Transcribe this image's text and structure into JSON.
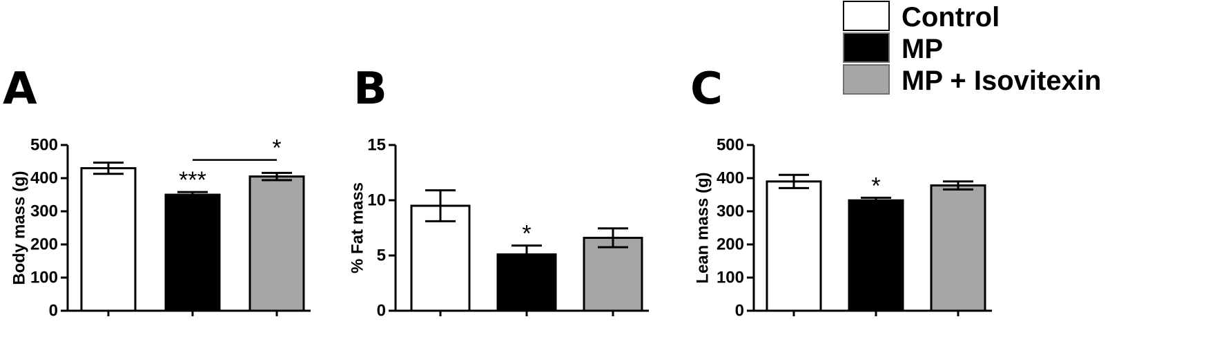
{
  "legend": [
    {
      "label": "Control",
      "color": "#ffffff"
    },
    {
      "label": "MP",
      "color": "#000000"
    },
    {
      "label": "MP + Isovitexin",
      "color": "#a6a6a6"
    }
  ],
  "chart_data": [
    {
      "type": "bar",
      "panel": "A",
      "ylabel": "Body mass (g)",
      "ylim": [
        0,
        500
      ],
      "yticks": [
        0,
        100,
        200,
        300,
        400,
        500
      ],
      "categories": [
        "Control",
        "MP",
        "MP + Isovitexin"
      ],
      "values": [
        430,
        350,
        405
      ],
      "errors": [
        17,
        8,
        11
      ],
      "significance": [
        "",
        "***",
        ""
      ],
      "brackets": [
        {
          "from": 1,
          "to": 2,
          "label": "*",
          "y": 455
        }
      ]
    },
    {
      "type": "bar",
      "panel": "B",
      "ylabel": "% Fat mass",
      "ylim": [
        0,
        15
      ],
      "yticks": [
        0,
        5,
        10,
        15
      ],
      "categories": [
        "Control",
        "MP",
        "MP + Isovitexin"
      ],
      "values": [
        9.5,
        5.1,
        6.6
      ],
      "errors": [
        1.4,
        0.8,
        0.85
      ],
      "significance": [
        "",
        "*",
        ""
      ],
      "brackets": []
    },
    {
      "type": "bar",
      "panel": "C",
      "ylabel": "Lean mass (g)",
      "ylim": [
        0,
        500
      ],
      "yticks": [
        0,
        100,
        200,
        300,
        400,
        500
      ],
      "categories": [
        "Control",
        "MP",
        "MP + Isovitexin"
      ],
      "values": [
        390,
        333,
        378
      ],
      "errors": [
        20,
        8,
        12
      ],
      "significance": [
        "",
        "*",
        ""
      ],
      "brackets": []
    }
  ]
}
